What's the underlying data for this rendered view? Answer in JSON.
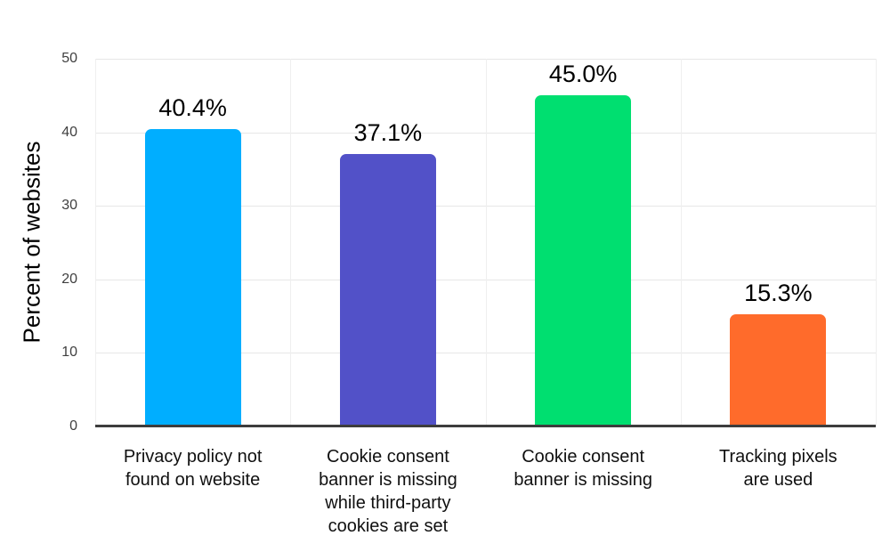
{
  "chart_data": {
    "type": "bar",
    "title": "",
    "xlabel": "",
    "ylabel": "Percent of websites",
    "ylim": [
      0,
      50
    ],
    "yticks": [
      0,
      10,
      20,
      30,
      40,
      50
    ],
    "grid": true,
    "legend": false,
    "categories": [
      "Privacy policy not found on website",
      "Cookie consent banner is missing while third-party cookies are set",
      "Cookie consent banner is missing",
      "Tracking pixels are used"
    ],
    "category_lines": [
      [
        "Privacy policy not",
        "found on website"
      ],
      [
        "Cookie consent",
        "banner is missing",
        "while third-party",
        "cookies are set"
      ],
      [
        "Cookie consent",
        "banner is missing"
      ],
      [
        "Tracking pixels",
        "are used"
      ]
    ],
    "values": [
      40.4,
      37.1,
      45.0,
      15.3
    ],
    "value_labels": [
      "40.4%",
      "37.1%",
      "45.0%",
      "15.3%"
    ],
    "bar_colors": [
      "#00AEFF",
      "#5251C8",
      "#00DF70",
      "#FF6B2B"
    ],
    "colors": {
      "background": "#ffffff",
      "gridline": "#e7e7e7",
      "vertical_gridline": "#efefef",
      "axis_line": "#3d3d3d",
      "tick_label": "#3f3f3f",
      "category_label": "#101010",
      "value_label": "#000000"
    }
  }
}
